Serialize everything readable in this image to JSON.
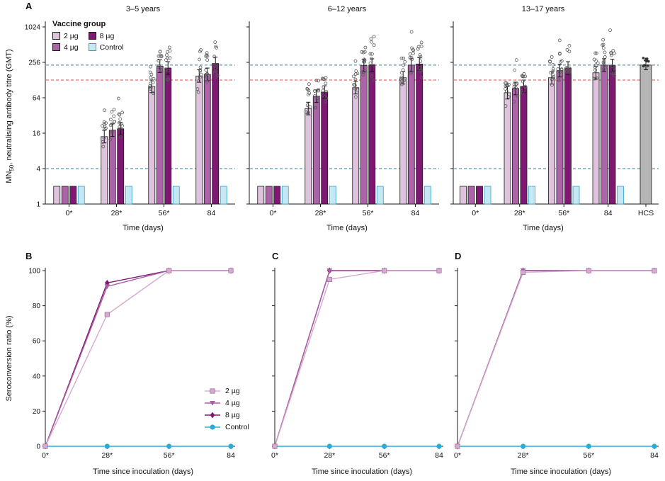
{
  "panel_letters": {
    "a": "A",
    "b": "B",
    "c": "C",
    "d": "D"
  },
  "labels": {
    "a_ylabel_prefix": "MN",
    "a_ylabel_sub": "50",
    "a_ylabel_rest": ", neutralising antibody titre (GMT)",
    "b_ylabel": "Seroconversion ratio (%)"
  },
  "vaccine_legend": {
    "title": "Vaccine group",
    "items": [
      "2 µg",
      "4 µg",
      "8 µg",
      "Control"
    ]
  },
  "sero_legend": {
    "items": [
      "2 µg",
      "4 µg",
      "8 µg",
      "Control"
    ]
  },
  "colors": {
    "axis": "#1a1a1a",
    "ref_teal": "#2e7f99",
    "ref_red": "#e04b4b",
    "scatter_outline": "#5a5a5a"
  },
  "series_styles": {
    "2 µg": {
      "fill": "#dfc3dd",
      "stroke": "#1a1a1a",
      "line": "#d5abd1",
      "marker": "square"
    },
    "4 µg": {
      "fill": "#ad63a8",
      "stroke": "#1a1a1a",
      "line": "#a85ca2",
      "marker": "triangle"
    },
    "8 µg": {
      "fill": "#7e1873",
      "stroke": "#1a1a1a",
      "line": "#7e1873",
      "marker": "diamond"
    },
    "Control": {
      "fill": "#c6e8f2",
      "stroke": "#2ba3cc",
      "line": "#29abd6",
      "marker": "circle"
    },
    "HCS": {
      "fill": "#b5b5b5",
      "stroke": "#1a1a1a"
    }
  },
  "chart_data": [
    {
      "id": "A1",
      "type": "bar",
      "scale": "log",
      "title": "3–5 years",
      "xlabel": "Time (days)",
      "ylabel": "MN50, neutralising antibody titre (GMT)",
      "ylim": [
        1,
        1024
      ],
      "yticks": [
        1,
        4,
        16,
        64,
        256,
        1024
      ],
      "categories": [
        "0*",
        "28*",
        "56*",
        "84"
      ],
      "series": [
        {
          "name": "2 µg",
          "values": [
            2,
            14,
            100,
            150
          ]
        },
        {
          "name": "4 µg",
          "values": [
            2,
            18,
            220,
            160
          ]
        },
        {
          "name": "8 µg",
          "values": [
            2,
            19,
            205,
            245
          ]
        },
        {
          "name": "Control",
          "values": [
            2,
            2,
            2,
            2
          ]
        }
      ],
      "ref_lines": [
        {
          "y": 4,
          "color": "#2e7f99"
        },
        {
          "y": 128,
          "color": "#e04b4b"
        },
        {
          "y": 230,
          "color": "#2e7f99"
        }
      ]
    },
    {
      "id": "A2",
      "type": "bar",
      "scale": "log",
      "title": "6–12 years",
      "xlabel": "Time (days)",
      "ylabel": "MN50, neutralising antibody titre (GMT)",
      "ylim": [
        1,
        1024
      ],
      "yticks": [
        1,
        4,
        16,
        64,
        256,
        1024
      ],
      "categories": [
        "0*",
        "28*",
        "56*",
        "84"
      ],
      "series": [
        {
          "name": "2 µg",
          "values": [
            2,
            42,
            95,
            140
          ]
        },
        {
          "name": "4 µg",
          "values": [
            2,
            68,
            225,
            230
          ]
        },
        {
          "name": "8 µg",
          "values": [
            2,
            80,
            230,
            240
          ]
        },
        {
          "name": "Control",
          "values": [
            2,
            2,
            2,
            2
          ]
        }
      ],
      "ref_lines": [
        {
          "y": 4,
          "color": "#2e7f99"
        },
        {
          "y": 128,
          "color": "#e04b4b"
        },
        {
          "y": 230,
          "color": "#2e7f99"
        }
      ]
    },
    {
      "id": "A3",
      "type": "bar",
      "scale": "log",
      "title": "13–17 years",
      "xlabel": "Time (days)",
      "ylabel": "MN50, neutralising antibody titre (GMT)",
      "ylim": [
        1,
        1024
      ],
      "yticks": [
        1,
        4,
        16,
        64,
        256,
        1024
      ],
      "categories": [
        "0*",
        "28*",
        "56*",
        "84"
      ],
      "series": [
        {
          "name": "2 µg",
          "values": [
            2,
            78,
            140,
            170
          ]
        },
        {
          "name": "4 µg",
          "values": [
            2,
            92,
            185,
            230
          ]
        },
        {
          "name": "8 µg",
          "values": [
            2,
            100,
            205,
            225
          ]
        },
        {
          "name": "Control",
          "values": [
            2,
            2,
            2,
            2
          ]
        }
      ],
      "extra": {
        "label": "HCS",
        "value": 230
      },
      "ref_lines": [
        {
          "y": 4,
          "color": "#2e7f99"
        },
        {
          "y": 128,
          "color": "#e04b4b"
        },
        {
          "y": 230,
          "color": "#2e7f99"
        }
      ]
    },
    {
      "id": "B",
      "type": "line",
      "xlabel": "Time since inoculation (days)",
      "ylabel": "Seroconversion ratio (%)",
      "ylim": [
        0,
        100
      ],
      "yticks": [
        0,
        20,
        40,
        60,
        80,
        100
      ],
      "x": [
        0,
        28,
        56,
        84
      ],
      "x_tick_labels": [
        "0*",
        "28*",
        "56*",
        "84"
      ],
      "series": [
        {
          "name": "2 µg",
          "values": [
            0,
            75,
            100,
            100
          ]
        },
        {
          "name": "4 µg",
          "values": [
            0,
            91,
            100,
            100
          ]
        },
        {
          "name": "8 µg",
          "values": [
            0,
            93,
            100,
            100
          ]
        },
        {
          "name": "Control",
          "values": [
            0,
            0,
            0,
            0
          ]
        }
      ]
    },
    {
      "id": "C",
      "type": "line",
      "xlabel": "Time since inoculation (days)",
      "ylabel": "",
      "ylim": [
        0,
        100
      ],
      "yticks": [
        0,
        20,
        40,
        60,
        80,
        100
      ],
      "x": [
        0,
        28,
        56,
        84
      ],
      "x_tick_labels": [
        "0*",
        "28*",
        "56*",
        "84"
      ],
      "series": [
        {
          "name": "2 µg",
          "values": [
            0,
            95,
            100,
            100
          ]
        },
        {
          "name": "4 µg",
          "values": [
            0,
            100,
            100,
            100
          ]
        },
        {
          "name": "8 µg",
          "values": [
            0,
            100,
            100,
            100
          ]
        },
        {
          "name": "Control",
          "values": [
            0,
            0,
            0,
            0
          ]
        }
      ]
    },
    {
      "id": "D",
      "type": "line",
      "xlabel": "Time since inoculation (days)",
      "ylabel": "",
      "ylim": [
        0,
        100
      ],
      "yticks": [
        0,
        20,
        40,
        60,
        80,
        100
      ],
      "x": [
        0,
        28,
        56,
        84
      ],
      "x_tick_labels": [
        "0*",
        "28*",
        "56*",
        "84"
      ],
      "series": [
        {
          "name": "2 µg",
          "values": [
            0,
            99,
            100,
            100
          ]
        },
        {
          "name": "4 µg",
          "values": [
            0,
            100,
            100,
            100
          ]
        },
        {
          "name": "8 µg",
          "values": [
            0,
            100,
            100,
            100
          ]
        },
        {
          "name": "Control",
          "values": [
            0,
            0,
            0,
            0
          ]
        }
      ]
    }
  ]
}
